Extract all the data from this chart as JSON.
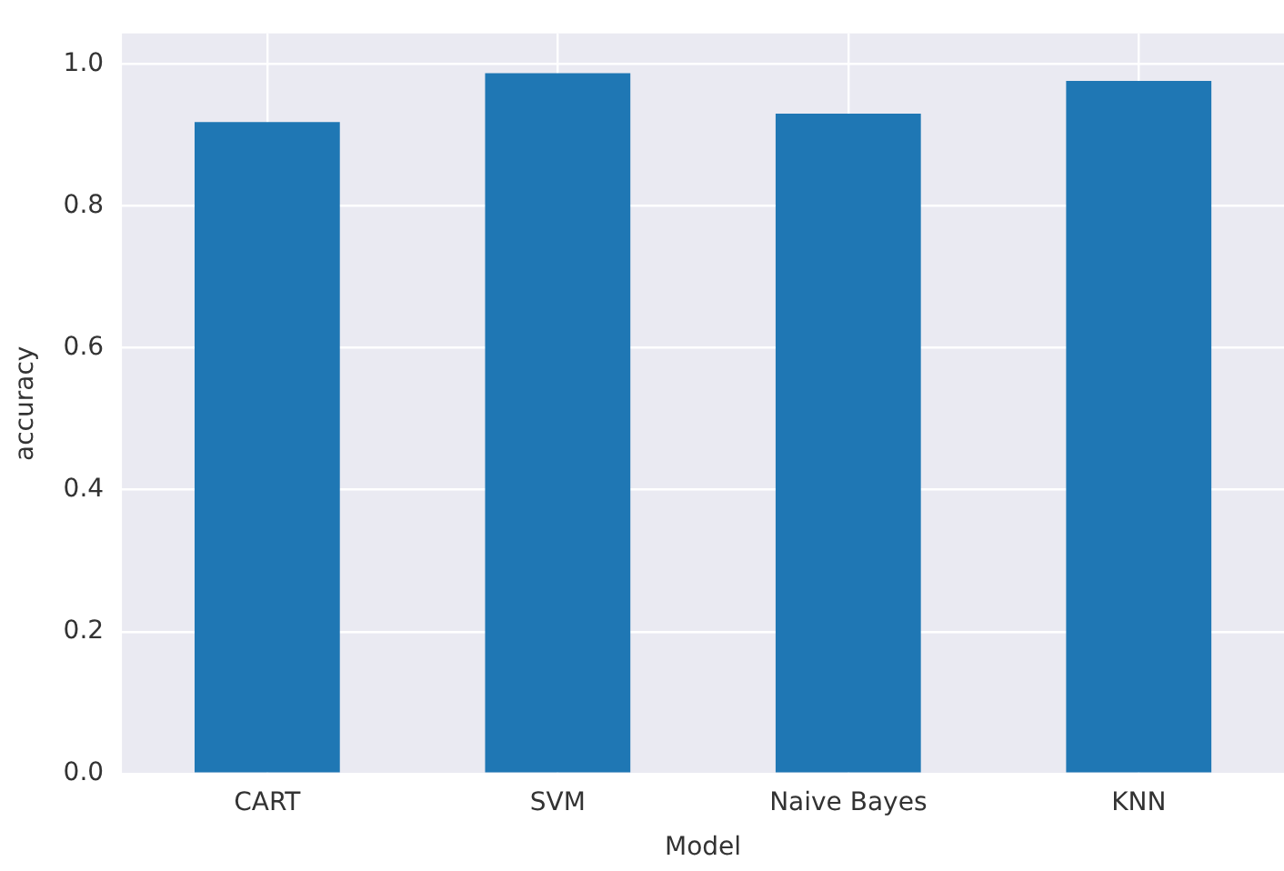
{
  "chart_data": {
    "type": "bar",
    "xlabel": "Model",
    "ylabel": "accuracy",
    "categories": [
      "CART",
      "SVM",
      "Naive Bayes",
      "KNN"
    ],
    "values": [
      0.918,
      0.987,
      0.93,
      0.976
    ],
    "color": "#1f77b4",
    "ylim": [
      0,
      1.043
    ],
    "yticks": [
      {
        "value": 0,
        "label": "0.0"
      },
      {
        "value": 0.2,
        "label": "0.2"
      },
      {
        "value": 0.4,
        "label": "0.4"
      },
      {
        "value": 0.6,
        "label": "0.6"
      },
      {
        "value": 0.8,
        "label": "0.8"
      },
      {
        "value": 1,
        "label": "1.0"
      }
    ],
    "grid": true,
    "legend": false
  }
}
